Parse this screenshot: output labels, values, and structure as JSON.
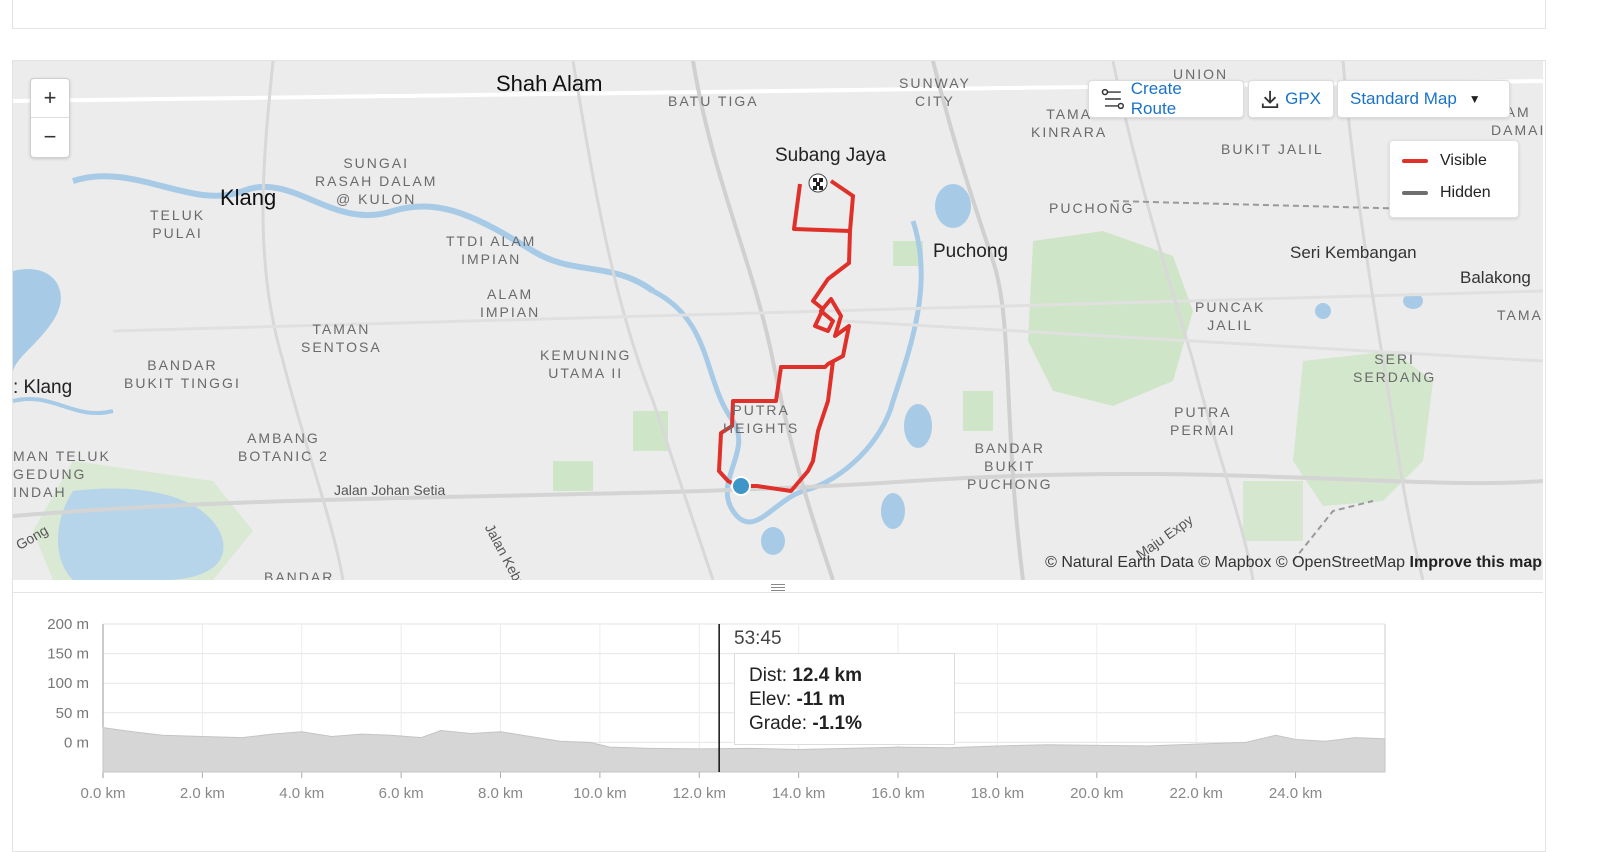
{
  "map": {
    "zoom_in_label": "+",
    "zoom_out_label": "−",
    "create_route_label": "Create Route",
    "gpx_label": "GPX",
    "map_style_label": "Standard Map",
    "legend": {
      "visible_label": "Visible",
      "hidden_label": "Hidden",
      "visible_color": "#e0302a",
      "hidden_color": "#6e6e6e"
    },
    "attribution": "© Natural Earth Data © Mapbox © OpenStreetMap",
    "improve_label": "Improve this map",
    "places": {
      "shah_alam": "Shah Alam",
      "batu_tiga": "BATU TIGA",
      "sunway_city": "SUNWAY\nCITY",
      "union": "UNION",
      "tama_kinrara": "TAMA\nKINRARA",
      "bukit_jalil": "BUKIT JALIL",
      "am_damai": "AM\nDAMAI",
      "subang_jaya": "Subang Jaya",
      "klang": "Klang",
      "sungai_rasah": "SUNGAI\nRASAH DALAM\n@ KULON",
      "teluk_pulai": "TELUK\nPULAI",
      "ttdi_alam": "TTDI ALAM\nIMPIAN",
      "alam_impian": "ALAM\nIMPIAN",
      "puchong_dist": "PUCHONG",
      "puchong": "Puchong",
      "seri_kembangan": "Seri Kembangan",
      "balakong": "Balakong",
      "puncak_jalil": "PUNCAK\nJALIL",
      "tama": "TAMA",
      "taman_sentosa": "TAMAN\nSENTOSA",
      "kemuning": "KEMUNING\nUTAMA II",
      "bandar_bukit_tinggi": "BANDAR\nBUKIT TINGGI",
      "port_klang": ": Klang",
      "putra_heights": "PUTRA\nHEIGHTS",
      "seri_serdang": "SERI\nSERDANG",
      "putra_permai": "PUTRA\nPERMAI",
      "ambang_botanic": "AMBANG\nBOTANIC 2",
      "teluk_gedung": "MAN TELUK\nGEDUNG\nINDAH",
      "bandar_bukit_puchong": "BANDAR\nBUKIT\nPUCHONG",
      "jalan_johan": "Jalan Johan Setia",
      "jalan_kebun": "Jalan Kebun",
      "gong": "Gong",
      "maju_expy": "Maju Expy",
      "bandar_bottom": "BANDAR"
    }
  },
  "chart_data": {
    "type": "area",
    "title": "",
    "xlabel": "",
    "ylabel": "",
    "xlim": [
      0,
      25.8
    ],
    "ylim": [
      -50,
      200
    ],
    "x_ticks": [
      "0.0 km",
      "2.0 km",
      "4.0 km",
      "6.0 km",
      "8.0 km",
      "10.0 km",
      "12.0 km",
      "14.0 km",
      "16.0 km",
      "18.0 km",
      "20.0 km",
      "22.0 km",
      "24.0 km"
    ],
    "y_ticks": [
      "200 m",
      "150 m",
      "100 m",
      "50 m",
      "0 m"
    ],
    "x_km": [
      0,
      0.6,
      1.2,
      2.0,
      2.8,
      3.4,
      4.0,
      4.6,
      5.2,
      5.8,
      6.4,
      6.8,
      7.4,
      8.0,
      8.6,
      9.2,
      9.8,
      10.2,
      11.0,
      12.0,
      13.0,
      14.0,
      15.0,
      16.0,
      17.0,
      18.0,
      19.0,
      20.0,
      21.0,
      22.0,
      23.0,
      23.6,
      24.0,
      24.6,
      25.2,
      25.8
    ],
    "elev_m": [
      25,
      18,
      12,
      10,
      8,
      14,
      18,
      10,
      14,
      12,
      8,
      20,
      15,
      18,
      10,
      2,
      0,
      -8,
      -10,
      -11,
      -10,
      -12,
      -10,
      -8,
      -9,
      -6,
      -4,
      -5,
      -6,
      -3,
      0,
      12,
      5,
      2,
      8,
      6
    ],
    "cursor": {
      "time": "53:45",
      "dist_label": "Dist:",
      "dist": "12.4 km",
      "elev_label": "Elev:",
      "elev": "-11 m",
      "grade_label": "Grade:",
      "grade": "-1.1%",
      "x_km": 12.4
    }
  }
}
